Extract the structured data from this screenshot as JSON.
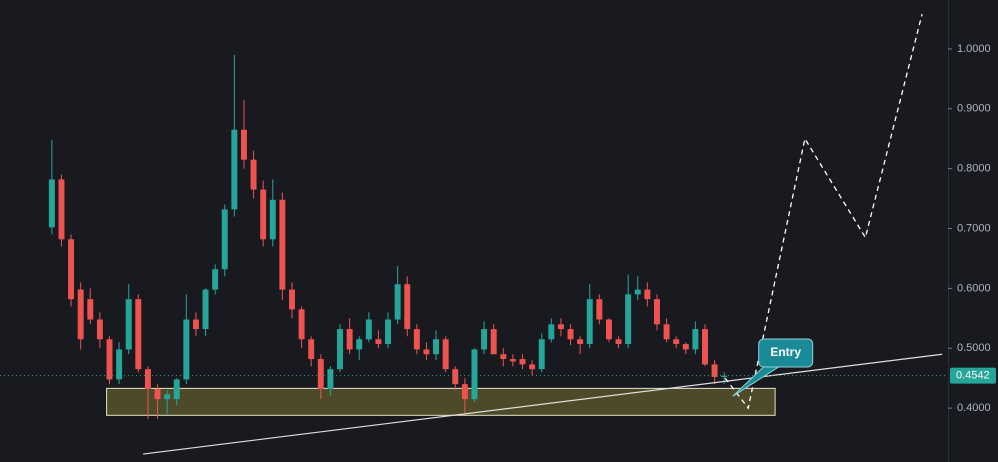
{
  "chart_data": {
    "type": "candlestick",
    "up_color": "#26a69a",
    "down_color": "#ef5350",
    "open": [
      0.702,
      0.782,
      0.682,
      0.598,
      0.582,
      0.548,
      0.515,
      0.448,
      0.498,
      0.582,
      0.465,
      0.432,
      0.415,
      0.415,
      0.448,
      0.548,
      0.532,
      0.598,
      0.632,
      0.732,
      0.865,
      0.815,
      0.765,
      0.682,
      0.748,
      0.598,
      0.565,
      0.515,
      0.482,
      0.432,
      0.465,
      0.532,
      0.498,
      0.515,
      0.515,
      0.507,
      0.548,
      0.607,
      0.532,
      0.498,
      0.49,
      0.515,
      0.465,
      0.44,
      0.415,
      0.498,
      0.532,
      0.49,
      0.482,
      0.482,
      0.473,
      0.465,
      0.515,
      0.54,
      0.532,
      0.515,
      0.507,
      0.582,
      0.548,
      0.515,
      0.507,
      0.59,
      0.598,
      0.582,
      0.54,
      0.515,
      0.507,
      0.498,
      0.532,
      0.473,
      0.452
    ],
    "high": [
      0.848,
      0.79,
      0.69,
      0.61,
      0.6,
      0.56,
      0.52,
      0.51,
      0.607,
      0.59,
      0.47,
      0.44,
      0.43,
      0.45,
      0.59,
      0.56,
      0.6,
      0.64,
      0.74,
      0.99,
      0.915,
      0.83,
      0.78,
      0.782,
      0.76,
      0.61,
      0.57,
      0.52,
      0.49,
      0.47,
      0.54,
      0.55,
      0.52,
      0.56,
      0.53,
      0.56,
      0.637,
      0.62,
      0.54,
      0.51,
      0.53,
      0.52,
      0.47,
      0.45,
      0.5,
      0.545,
      0.54,
      0.5,
      0.49,
      0.49,
      0.48,
      0.525,
      0.55,
      0.55,
      0.54,
      0.52,
      0.607,
      0.59,
      0.55,
      0.52,
      0.623,
      0.62,
      0.61,
      0.59,
      0.55,
      0.52,
      0.51,
      0.545,
      0.54,
      0.48,
      0.46
    ],
    "low": [
      0.69,
      0.67,
      0.57,
      0.498,
      0.54,
      0.5,
      0.44,
      0.44,
      0.49,
      0.46,
      0.382,
      0.382,
      0.39,
      0.405,
      0.44,
      0.52,
      0.52,
      0.59,
      0.62,
      0.72,
      0.8,
      0.75,
      0.67,
      0.67,
      0.58,
      0.55,
      0.5,
      0.47,
      0.415,
      0.42,
      0.46,
      0.49,
      0.48,
      0.51,
      0.5,
      0.5,
      0.54,
      0.52,
      0.49,
      0.48,
      0.48,
      0.46,
      0.43,
      0.39,
      0.41,
      0.49,
      0.49,
      0.47,
      0.47,
      0.465,
      0.455,
      0.46,
      0.51,
      0.52,
      0.505,
      0.49,
      0.5,
      0.54,
      0.51,
      0.5,
      0.5,
      0.58,
      0.57,
      0.53,
      0.51,
      0.5,
      0.49,
      0.49,
      0.47,
      0.44,
      0.44
    ],
    "close": [
      0.782,
      0.682,
      0.582,
      0.515,
      0.548,
      0.515,
      0.448,
      0.498,
      0.582,
      0.465,
      0.432,
      0.415,
      0.423,
      0.448,
      0.548,
      0.532,
      0.598,
      0.632,
      0.732,
      0.865,
      0.815,
      0.765,
      0.682,
      0.748,
      0.598,
      0.565,
      0.515,
      0.482,
      0.432,
      0.465,
      0.532,
      0.498,
      0.515,
      0.548,
      0.507,
      0.548,
      0.607,
      0.532,
      0.498,
      0.49,
      0.515,
      0.465,
      0.44,
      0.415,
      0.498,
      0.532,
      0.49,
      0.482,
      0.478,
      0.473,
      0.465,
      0.515,
      0.54,
      0.532,
      0.515,
      0.507,
      0.582,
      0.548,
      0.515,
      0.507,
      0.59,
      0.598,
      0.582,
      0.54,
      0.515,
      0.507,
      0.498,
      0.532,
      0.473,
      0.452,
      0.4542
    ],
    "xlim": [
      -5.4,
      93.3
    ],
    "ylim": [
      0.31,
      1.0817
    ],
    "yticks": [
      {
        "value": 0.4,
        "label": "0.4000"
      },
      {
        "value": 0.5,
        "label": "0.5000"
      },
      {
        "value": 0.6,
        "label": "0.6000"
      },
      {
        "value": 0.7,
        "label": "0.7000"
      },
      {
        "value": 0.8,
        "label": "0.8000"
      },
      {
        "value": 0.9,
        "label": "0.9000"
      },
      {
        "value": 1.0,
        "label": "1.0000"
      }
    ],
    "zone": {
      "x": [
        5.7,
        75.3
      ],
      "y": [
        0.388,
        0.433
      ]
    },
    "trendline": {
      "x": [
        9.5,
        92.7
      ],
      "y": [
        0.3233,
        0.49
      ]
    },
    "projection": {
      "x": [
        70.1,
        72.5,
        78.4,
        84.7,
        90.6
      ],
      "y": [
        0.45,
        0.4,
        0.85,
        0.685,
        1.058
      ]
    },
    "annotation": {
      "text": "Entry",
      "x": 76.4,
      "y": 0.492,
      "target_x": 70.9,
      "target_y": 0.42
    }
  }
}
